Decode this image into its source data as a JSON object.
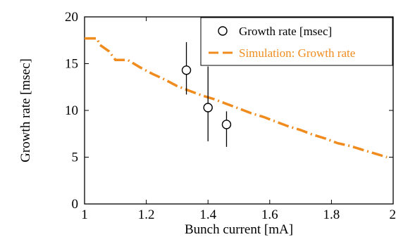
{
  "chart_data": {
    "type": "scatter",
    "title": "",
    "xlabel": "Bunch current [mA]",
    "ylabel": "Growth rate [msec]",
    "xlim": [
      1,
      2
    ],
    "ylim": [
      0,
      20
    ],
    "x_ticks": [
      "1",
      "1.2",
      "1.4",
      "1.6",
      "1.8",
      "2"
    ],
    "y_ticks": [
      "0",
      "5",
      "10",
      "15",
      "20"
    ],
    "legend_position": "top-right",
    "series": [
      {
        "name": "Growth rate [msec]",
        "kind": "points-with-errorbars",
        "marker": "open-circle",
        "color": "#000000",
        "points": [
          {
            "x": 1.33,
            "y": 14.3,
            "ymin": 11.7,
            "ymax": 17.3
          },
          {
            "x": 1.4,
            "y": 10.3,
            "ymin": 6.7,
            "ymax": 14.7
          },
          {
            "x": 1.46,
            "y": 8.5,
            "ymin": 6.1,
            "ymax": 9.9
          }
        ]
      },
      {
        "name": "Simulation: Growth rate",
        "kind": "dashed-line",
        "color": "#f08c1e",
        "x": [
          1.0,
          1.04,
          1.05,
          1.08,
          1.1,
          1.14,
          1.18,
          1.22,
          1.26,
          1.3,
          1.34,
          1.38,
          1.42,
          1.46,
          1.5,
          1.54,
          1.58,
          1.62,
          1.66,
          1.7,
          1.74,
          1.78,
          1.82,
          1.86,
          1.9,
          1.94,
          1.98
        ],
        "y": [
          17.7,
          17.7,
          17.0,
          16.3,
          15.4,
          15.4,
          14.6,
          13.9,
          13.3,
          12.6,
          12.1,
          11.6,
          11.2,
          10.7,
          10.2,
          9.7,
          9.3,
          8.8,
          8.3,
          7.9,
          7.4,
          7.0,
          6.5,
          6.2,
          5.8,
          5.4,
          5.0
        ]
      }
    ]
  }
}
